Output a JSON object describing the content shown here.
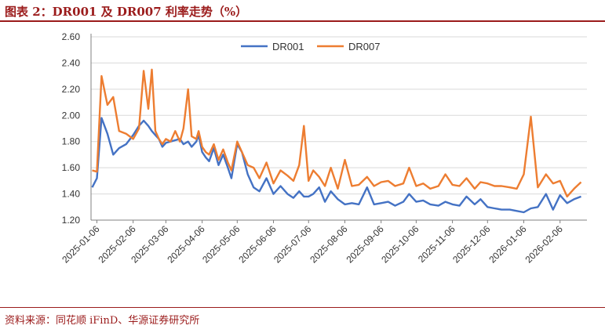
{
  "title": "图表 2：DR001 及 DR007 利率走势（%）",
  "source": "资料来源：同花顺 iFinD、华源证券研究所",
  "colors": {
    "DR001": "#4472c4",
    "DR007": "#ed7d31",
    "accent": "#9b1b1b",
    "grid": "#d9d9d9"
  },
  "chart_data": {
    "type": "line",
    "title": "",
    "xlabel": "",
    "ylabel": "",
    "ylim": [
      1.2,
      2.6
    ],
    "yticks": [
      "1.20",
      "1.40",
      "1.60",
      "1.80",
      "2.00",
      "2.20",
      "2.40",
      "2.60"
    ],
    "xticks": [
      "2025-01-06",
      "2025-02-06",
      "2025-03-06",
      "2025-04-06",
      "2025-05-06",
      "2025-06-06",
      "2025-07-06",
      "2025-08-06",
      "2025-09-06",
      "2025-10-06",
      "2025-11-06",
      "2025-12-06",
      "2026-01-06",
      "2026-02-06"
    ],
    "grid": "horizontal",
    "legend_position": "top",
    "x": [
      "2025-01-02",
      "2025-01-06",
      "2025-01-10",
      "2025-01-15",
      "2025-01-20",
      "2025-01-25",
      "2025-01-31",
      "2025-02-06",
      "2025-02-11",
      "2025-02-15",
      "2025-02-19",
      "2025-02-22",
      "2025-02-25",
      "2025-02-28",
      "2025-03-03",
      "2025-03-06",
      "2025-03-10",
      "2025-03-14",
      "2025-03-18",
      "2025-03-21",
      "2025-03-25",
      "2025-03-28",
      "2025-04-01",
      "2025-04-03",
      "2025-04-06",
      "2025-04-09",
      "2025-04-12",
      "2025-04-16",
      "2025-04-20",
      "2025-04-24",
      "2025-04-28",
      "2025-05-01",
      "2025-05-06",
      "2025-05-10",
      "2025-05-15",
      "2025-05-20",
      "2025-05-25",
      "2025-05-31",
      "2025-06-06",
      "2025-06-12",
      "2025-06-18",
      "2025-06-23",
      "2025-06-28",
      "2025-07-02",
      "2025-07-06",
      "2025-07-10",
      "2025-07-15",
      "2025-07-20",
      "2025-07-25",
      "2025-07-31",
      "2025-08-06",
      "2025-08-12",
      "2025-08-18",
      "2025-08-25",
      "2025-08-31",
      "2025-09-06",
      "2025-09-12",
      "2025-09-18",
      "2025-09-25",
      "2025-09-30",
      "2025-10-06",
      "2025-10-12",
      "2025-10-18",
      "2025-10-25",
      "2025-10-31",
      "2025-11-06",
      "2025-11-12",
      "2025-11-18",
      "2025-11-25",
      "2025-11-30",
      "2025-12-06",
      "2025-12-12",
      "2025-12-18",
      "2025-12-25",
      "2025-12-31",
      "2026-01-06",
      "2026-01-12",
      "2026-01-18",
      "2026-01-25",
      "2026-01-31",
      "2026-02-06",
      "2026-02-12",
      "2026-02-18",
      "2026-02-24"
    ],
    "series": [
      {
        "name": "DR001",
        "values": [
          1.45,
          1.52,
          1.98,
          1.86,
          1.7,
          1.75,
          1.78,
          1.85,
          1.92,
          1.96,
          1.92,
          1.88,
          1.85,
          1.82,
          1.76,
          1.79,
          1.8,
          1.81,
          1.82,
          1.78,
          1.8,
          1.76,
          1.8,
          1.85,
          1.72,
          1.68,
          1.65,
          1.75,
          1.62,
          1.7,
          1.6,
          1.52,
          1.78,
          1.72,
          1.55,
          1.45,
          1.42,
          1.52,
          1.4,
          1.46,
          1.4,
          1.37,
          1.42,
          1.38,
          1.38,
          1.4,
          1.45,
          1.34,
          1.42,
          1.36,
          1.32,
          1.33,
          1.32,
          1.45,
          1.32,
          1.33,
          1.34,
          1.31,
          1.34,
          1.4,
          1.34,
          1.35,
          1.32,
          1.31,
          1.34,
          1.32,
          1.31,
          1.38,
          1.32,
          1.36,
          1.3,
          1.29,
          1.28,
          1.28,
          1.27,
          1.26,
          1.29,
          1.3,
          1.4,
          1.28,
          1.39,
          1.33,
          1.36,
          1.38
        ]
      },
      {
        "name": "DR007",
        "values": [
          1.58,
          1.57,
          2.3,
          2.08,
          2.14,
          1.88,
          1.86,
          1.82,
          1.9,
          2.34,
          2.05,
          2.35,
          1.88,
          1.82,
          1.78,
          1.82,
          1.8,
          1.88,
          1.8,
          1.9,
          2.2,
          1.84,
          1.82,
          1.88,
          1.76,
          1.72,
          1.7,
          1.78,
          1.66,
          1.74,
          1.64,
          1.58,
          1.8,
          1.72,
          1.62,
          1.6,
          1.52,
          1.64,
          1.48,
          1.58,
          1.54,
          1.5,
          1.62,
          1.92,
          1.5,
          1.58,
          1.53,
          1.46,
          1.6,
          1.44,
          1.66,
          1.46,
          1.47,
          1.53,
          1.46,
          1.49,
          1.5,
          1.46,
          1.48,
          1.6,
          1.46,
          1.48,
          1.44,
          1.46,
          1.55,
          1.47,
          1.46,
          1.52,
          1.44,
          1.49,
          1.48,
          1.46,
          1.46,
          1.45,
          1.44,
          1.55,
          1.99,
          1.45,
          1.55,
          1.48,
          1.5,
          1.38,
          1.44,
          1.49
        ]
      }
    ]
  }
}
